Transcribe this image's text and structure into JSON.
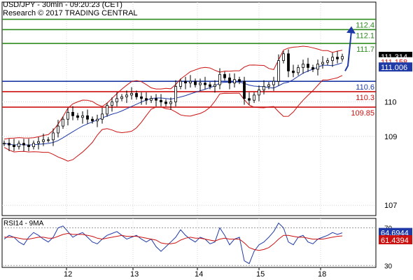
{
  "header": {
    "line1": "USD/JPY - 30min - 09:20:23 (CET)",
    "line2": "Research © 2017 TRADING CENTRAL"
  },
  "chart_data": [
    {
      "type": "candlestick",
      "symbol": "USD/JPY",
      "timeframe": "30min",
      "ylim": [
        106.7,
        112.9
      ],
      "yticks": [
        107,
        109,
        110
      ],
      "xticks": [
        "12",
        "13",
        "14",
        "15",
        "18"
      ],
      "last": 111.314,
      "indicator_values": [
        111.158,
        111.006
      ],
      "levels": [
        {
          "value": 112.4,
          "label": "112.4",
          "color": "#2e8b1e"
        },
        {
          "value": 112.1,
          "label": "112.1",
          "color": "#2e8b1e"
        },
        {
          "value": 111.7,
          "label": "111.7",
          "color": "#2e8b1e"
        },
        {
          "value": 110.6,
          "label": "110.6",
          "color": "#1f3aa6"
        },
        {
          "value": 110.3,
          "label": "110.3",
          "color": "#cc1111"
        },
        {
          "value": 109.85,
          "label": "109.85",
          "color": "#cc1111"
        }
      ],
      "close_approx": [
        108.8,
        108.75,
        108.7,
        108.8,
        108.75,
        108.7,
        108.8,
        108.85,
        108.9,
        108.9,
        109.1,
        109.3,
        109.5,
        109.7,
        109.6,
        109.55,
        109.6,
        109.5,
        109.45,
        109.5,
        109.65,
        109.9,
        110.0,
        110.1,
        110.15,
        110.2,
        110.25,
        110.15,
        110.1,
        110.05,
        110.1,
        110.05,
        110.0,
        109.95,
        110.0,
        110.45,
        110.6,
        110.55,
        110.6,
        110.5,
        110.55,
        110.5,
        110.45,
        110.5,
        110.8,
        110.7,
        110.55,
        110.65,
        110.6,
        110.1,
        110.05,
        110.2,
        110.35,
        110.45,
        110.5,
        110.6,
        111.2,
        111.4,
        110.9,
        110.85,
        111.0,
        111.1,
        111.0,
        110.95,
        111.1,
        111.15,
        111.2,
        111.3,
        111.25,
        111.32
      ],
      "forecast_target": 112.1,
      "colors": {
        "bands": "#cc1111",
        "moving_average": "#1f3aa6",
        "forecast_arrow": "#1f3aa6"
      }
    },
    {
      "type": "line",
      "title": "RSI14 - 9MA",
      "ylim": [
        28,
        80
      ],
      "yticks": [
        30,
        70
      ],
      "series": [
        {
          "values": [
            58,
            62,
            60,
            55,
            52,
            60,
            65,
            62,
            58,
            55,
            60,
            70,
            72,
            66,
            60,
            63,
            65,
            60,
            55,
            53,
            58,
            62,
            64,
            66,
            62,
            58,
            60,
            62,
            58,
            55,
            58,
            50,
            45,
            50,
            55,
            60,
            68,
            62,
            58,
            55,
            60,
            58,
            53,
            55,
            70,
            62,
            52,
            58,
            60,
            35,
            32,
            45,
            52,
            55,
            60,
            66,
            75,
            70,
            55,
            52,
            60,
            62,
            55,
            53,
            58,
            60,
            62,
            65,
            63,
            64.69
          ],
          "color": "#1f3aa6"
        },
        {
          "values": [
            60,
            60,
            60,
            59,
            58,
            58,
            59,
            60,
            60,
            59,
            59,
            61,
            63,
            64,
            63,
            63,
            63,
            62,
            61,
            59,
            58,
            59,
            60,
            61,
            62,
            61,
            61,
            61,
            60,
            59,
            58,
            57,
            54,
            53,
            53,
            54,
            57,
            59,
            60,
            59,
            59,
            58,
            57,
            56,
            58,
            59,
            58,
            58,
            58,
            54,
            49,
            47,
            46,
            47,
            49,
            53,
            58,
            62,
            62,
            61,
            60,
            60,
            59,
            58,
            58,
            58,
            59,
            60,
            61,
            61.44
          ],
          "color": "#cc1111"
        }
      ],
      "values_display": [
        64.6944,
        61.4394
      ]
    }
  ]
}
